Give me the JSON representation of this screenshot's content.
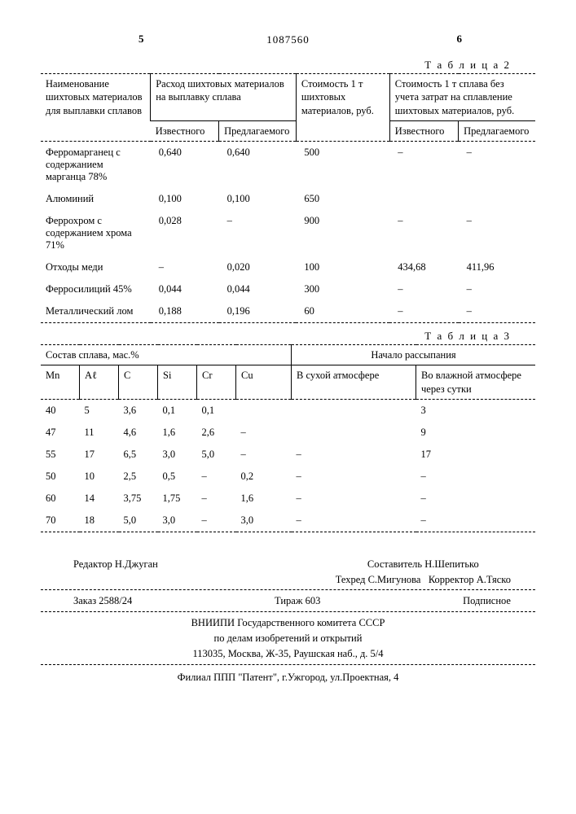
{
  "page_markers": {
    "left": "5",
    "right": "6"
  },
  "doc_number": "1087560",
  "table2": {
    "caption": "Т а б л и ц а  2",
    "headers": {
      "col1": "Наименование шихтовых материалов для выплавки сплавов",
      "col2": "Расход шихтовых материалов на выплавку сплава",
      "col2a": "Известного",
      "col2b": "Предлагаемого",
      "col3": "Стоимость 1 т шихтовых материалов, руб.",
      "col4": "Стоимость 1 т сплава без учета затрат на сплавление шихтовых материалов, руб.",
      "col4a": "Известного",
      "col4b": "Предлагаемого"
    },
    "rows": [
      {
        "name": "Ферромарганец с содержанием марганца 78%",
        "a": "0,640",
        "b": "0,640",
        "cost": "500",
        "c1": "–",
        "c2": "–"
      },
      {
        "name": "Алюминий",
        "a": "0,100",
        "b": "0,100",
        "cost": "650",
        "c1": "",
        "c2": ""
      },
      {
        "name": "Феррохром с содержанием хрома 71%",
        "a": "0,028",
        "b": "–",
        "cost": "900",
        "c1": "–",
        "c2": "–"
      },
      {
        "name": "Отходы меди",
        "a": "–",
        "b": "0,020",
        "cost": "100",
        "c1": "434,68",
        "c2": "411,96"
      },
      {
        "name": "Ферросилиций 45%",
        "a": "0,044",
        "b": "0,044",
        "cost": "300",
        "c1": "–",
        "c2": "–"
      },
      {
        "name": "Металлический лом",
        "a": "0,188",
        "b": "0,196",
        "cost": "60",
        "c1": "–",
        "c2": "–"
      }
    ]
  },
  "table3": {
    "caption": "Т а б л и ц а  3",
    "headers": {
      "group1": "Состав сплава, мас.%",
      "group2": "Начало рассыпания",
      "mn": "Mn",
      "al": "Aℓ",
      "c": "C",
      "si": "Si",
      "cr": "Cr",
      "cu": "Cu",
      "dry": "В сухой атмосфере",
      "wet": "Во влажной атмосфере через сутки"
    },
    "rows": [
      {
        "mn": "40",
        "al": "5",
        "c": "3,6",
        "si": "0,1",
        "cr": "0,1",
        "cu": "",
        "dry": "",
        "wet": "3"
      },
      {
        "mn": "47",
        "al": "11",
        "c": "4,6",
        "si": "1,6",
        "cr": "2,6",
        "cu": "–",
        "dry": "",
        "wet": "9"
      },
      {
        "mn": "55",
        "al": "17",
        "c": "6,5",
        "si": "3,0",
        "cr": "5,0",
        "cu": "–",
        "dry": "–",
        "wet": "17"
      },
      {
        "mn": "50",
        "al": "10",
        "c": "2,5",
        "si": "0,5",
        "cr": "–",
        "cu": "0,2",
        "dry": "–",
        "wet": "–"
      },
      {
        "mn": "60",
        "al": "14",
        "c": "3,75",
        "si": "1,75",
        "cr": "–",
        "cu": "1,6",
        "dry": "–",
        "wet": "–"
      },
      {
        "mn": "70",
        "al": "18",
        "c": "5,0",
        "si": "3,0",
        "cr": "–",
        "cu": "3,0",
        "dry": "–",
        "wet": "–"
      }
    ]
  },
  "footer": {
    "compiler": "Составитель Н.Шепитько",
    "editor": "Редактор Н.Джуган",
    "techred": "Техред С.Мигунова",
    "corrector": "Корректор А.Тяско",
    "order": "Заказ 2588/24",
    "tirazh": "Тираж 603",
    "podpisnoe": "Подписное",
    "org1": "ВНИИПИ Государственного комитета СССР",
    "org2": "по делам изобретений и открытий",
    "addr1": "113035, Москва, Ж-35, Раушская наб., д. 5/4",
    "filial": "Филиал ППП \"Патент\", г.Ужгород, ул.Проектная, 4"
  }
}
